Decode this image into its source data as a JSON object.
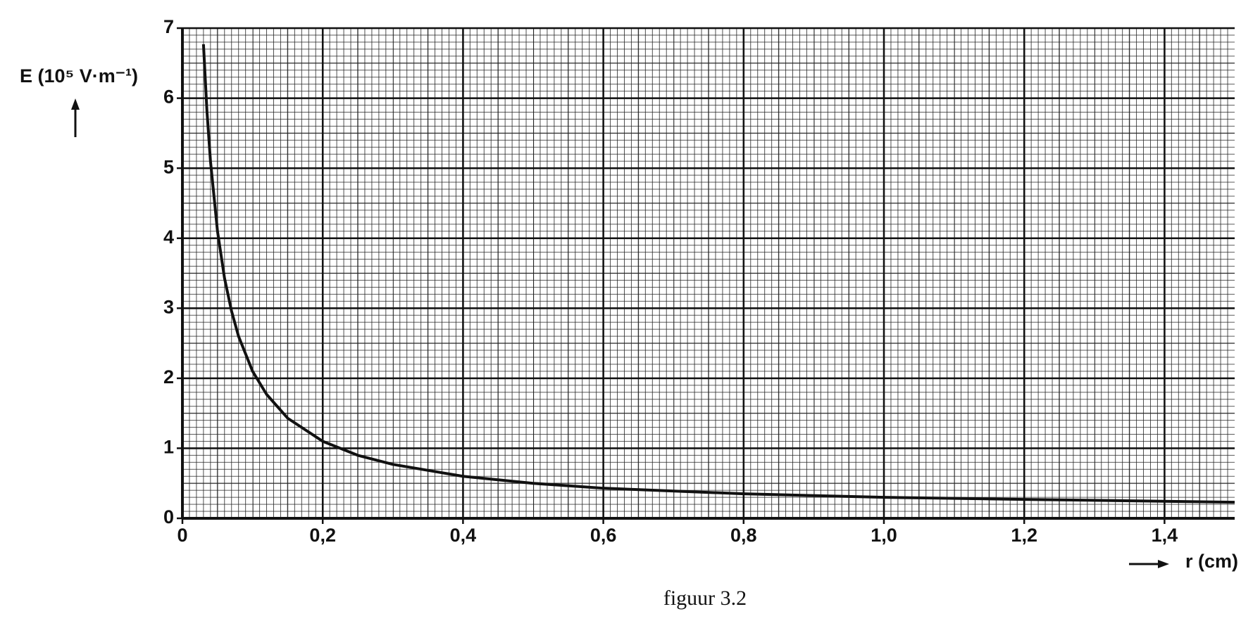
{
  "chart_data": {
    "type": "line",
    "y_label": "E (10⁵ V·m⁻¹)",
    "x_label": "r (cm)",
    "caption": "figuur 3.2",
    "x": [
      0.03,
      0.035,
      0.04,
      0.05,
      0.06,
      0.07,
      0.08,
      0.1,
      0.12,
      0.15,
      0.2,
      0.25,
      0.3,
      0.4,
      0.5,
      0.6,
      0.8,
      1.0,
      1.2,
      1.5
    ],
    "series": [
      {
        "color": "#111111",
        "values": [
          6.77,
          5.81,
          5.1,
          4.1,
          3.43,
          2.96,
          2.6,
          2.1,
          1.77,
          1.43,
          1.1,
          0.9,
          0.77,
          0.6,
          0.5,
          0.43,
          0.35,
          0.3,
          0.27,
          0.23
        ]
      }
    ],
    "xlim": [
      0,
      1.5
    ],
    "ylim": [
      0,
      7
    ],
    "xticks": [
      {
        "value": 0,
        "label": "0"
      },
      {
        "value": 0.2,
        "label": "0,2"
      },
      {
        "value": 0.4,
        "label": "0,4"
      },
      {
        "value": 0.6,
        "label": "0,6"
      },
      {
        "value": 0.8,
        "label": "0,8"
      },
      {
        "value": 1.0,
        "label": "1,0"
      },
      {
        "value": 1.2,
        "label": "1,2"
      },
      {
        "value": 1.4,
        "label": "1,4"
      }
    ],
    "yticks": [
      0,
      1,
      2,
      3,
      4,
      5,
      6,
      7
    ],
    "grid": true
  }
}
